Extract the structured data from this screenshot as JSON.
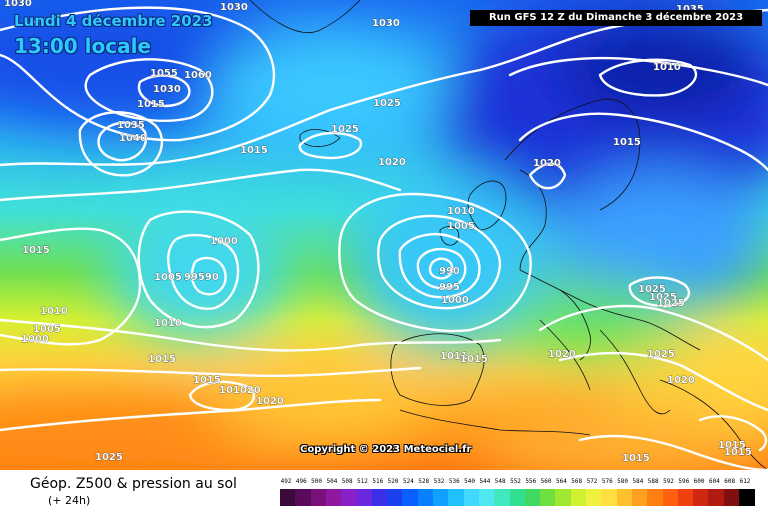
{
  "header": {
    "date": "Lundi 4 décembre 2023",
    "time": "13:00 locale",
    "run": "Run GFS 12 Z du Dimanche 3 décembre 2023"
  },
  "map": {
    "copyright": "Copyright © 2023 Meteociel.fr",
    "pressure_labels": [
      "1030",
      "1030",
      "1030",
      "1035",
      "1055",
      "1060",
      "1030",
      "1015",
      "1035",
      "1040",
      "1025",
      "1025",
      "1015",
      "1020",
      "1010",
      "1015",
      "1020",
      "1010",
      "1005",
      "1000",
      "1005",
      "99590",
      "990",
      "995",
      "1000",
      "1015",
      "1010",
      "1005",
      "1000",
      "1010",
      "1015",
      "1015",
      "101020",
      "1020",
      "1025",
      "1011",
      "1015",
      "1020",
      "1025",
      "1025",
      "1025",
      "1025",
      "1020",
      "1015",
      "1015",
      "1015"
    ]
  },
  "legend": {
    "title": "Géop. Z500 & pression au sol",
    "subtitle": "(+ 24h)",
    "scale_values": [
      "492",
      "496",
      "500",
      "504",
      "508",
      "512",
      "516",
      "520",
      "524",
      "528",
      "532",
      "536",
      "540",
      "544",
      "548",
      "552",
      "556",
      "560",
      "564",
      "568",
      "572",
      "576",
      "580",
      "584",
      "588",
      "592",
      "596",
      "600",
      "604",
      "608",
      "612"
    ],
    "scale_colors": [
      "#3a0a3a",
      "#5a0a5a",
      "#7a107a",
      "#9018a0",
      "#8a20c8",
      "#6a28e0",
      "#3a30e8",
      "#1a40f0",
      "#0a60ff",
      "#0a80ff",
      "#10a0ff",
      "#20c0ff",
      "#40d8ff",
      "#50e8f0",
      "#40e8c0",
      "#30e090",
      "#40d860",
      "#70e040",
      "#a0e830",
      "#d0f030",
      "#f0f040",
      "#ffe040",
      "#ffc030",
      "#ffa020",
      "#ff8010",
      "#ff6010",
      "#f04010",
      "#d02810",
      "#b01a10",
      "#801010",
      "#000000"
    ]
  }
}
